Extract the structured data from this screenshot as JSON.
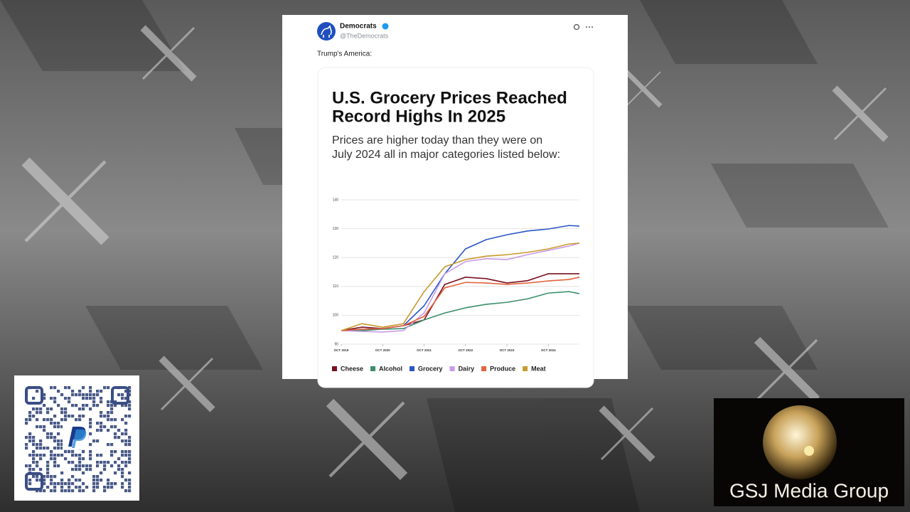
{
  "tweet": {
    "name": "Democrats",
    "handle": "@TheDemocrats",
    "text": "Trump's America:"
  },
  "chart_data": {
    "type": "line",
    "title": [
      "U.S. Grocery Prices Reached",
      "Record Highs In 2025"
    ],
    "subtitle": [
      "Prices are higher today than they were on",
      "July 2024 all in major categories listed below:"
    ],
    "x": [
      2019.75,
      2020.25,
      2020.75,
      2021.25,
      2021.75,
      2022.25,
      2022.75,
      2023.25,
      2023.75,
      2024.25,
      2024.75,
      2025.25,
      2025.5
    ],
    "xlim": [
      2019.75,
      2025.5
    ],
    "xticks": [
      {
        "value": 2019.75,
        "label": "OCT 2019"
      },
      {
        "value": 2020.75,
        "label": "OCT 2020"
      },
      {
        "value": 2021.75,
        "label": "OCT 2021"
      },
      {
        "value": 2022.75,
        "label": "OCT 2022"
      },
      {
        "value": 2023.75,
        "label": "OCT 2023"
      },
      {
        "value": 2024.75,
        "label": "OCT 2024"
      }
    ],
    "ylim": [
      90,
      140
    ],
    "yticks": [
      90,
      100,
      110,
      120,
      130,
      140
    ],
    "grid": true,
    "legend": "bottom",
    "series": [
      {
        "name": "Cheese",
        "color": "#7a1020",
        "values": [
          94.7,
          95.9,
          95.4,
          96.4,
          98.4,
          110.7,
          113.2,
          112.7,
          111.2,
          112.0,
          114.4,
          114.4,
          114.4
        ]
      },
      {
        "name": "Alcohol",
        "color": "#3a8f6a",
        "values": [
          94.7,
          94.7,
          95.2,
          95.4,
          98.4,
          100.8,
          102.6,
          103.8,
          104.5,
          105.7,
          107.7,
          108.2,
          107.5
        ]
      },
      {
        "name": "Grocery",
        "color": "#2a56c6",
        "values": [
          94.7,
          95.2,
          95.4,
          96.4,
          103.3,
          114.4,
          123.0,
          126.2,
          127.9,
          129.2,
          129.9,
          131.1,
          130.9
        ]
      },
      {
        "name": "Dairy",
        "color": "#c99be8",
        "values": [
          94.7,
          94.4,
          94.2,
          94.7,
          100.8,
          114.4,
          118.6,
          119.6,
          119.3,
          121.0,
          122.5,
          124.0,
          125.0
        ]
      },
      {
        "name": "Produce",
        "color": "#e2633d",
        "values": [
          94.7,
          95.2,
          95.4,
          96.4,
          99.6,
          109.5,
          111.4,
          111.2,
          110.7,
          111.2,
          111.9,
          112.4,
          113.2
        ]
      },
      {
        "name": "Meat",
        "color": "#c99a2e",
        "values": [
          94.7,
          97.1,
          95.9,
          97.1,
          108.2,
          116.8,
          119.3,
          120.5,
          121.0,
          121.8,
          123.0,
          124.7,
          125.0
        ]
      }
    ]
  },
  "overlay": {
    "brand": "GSJ Media Group"
  }
}
